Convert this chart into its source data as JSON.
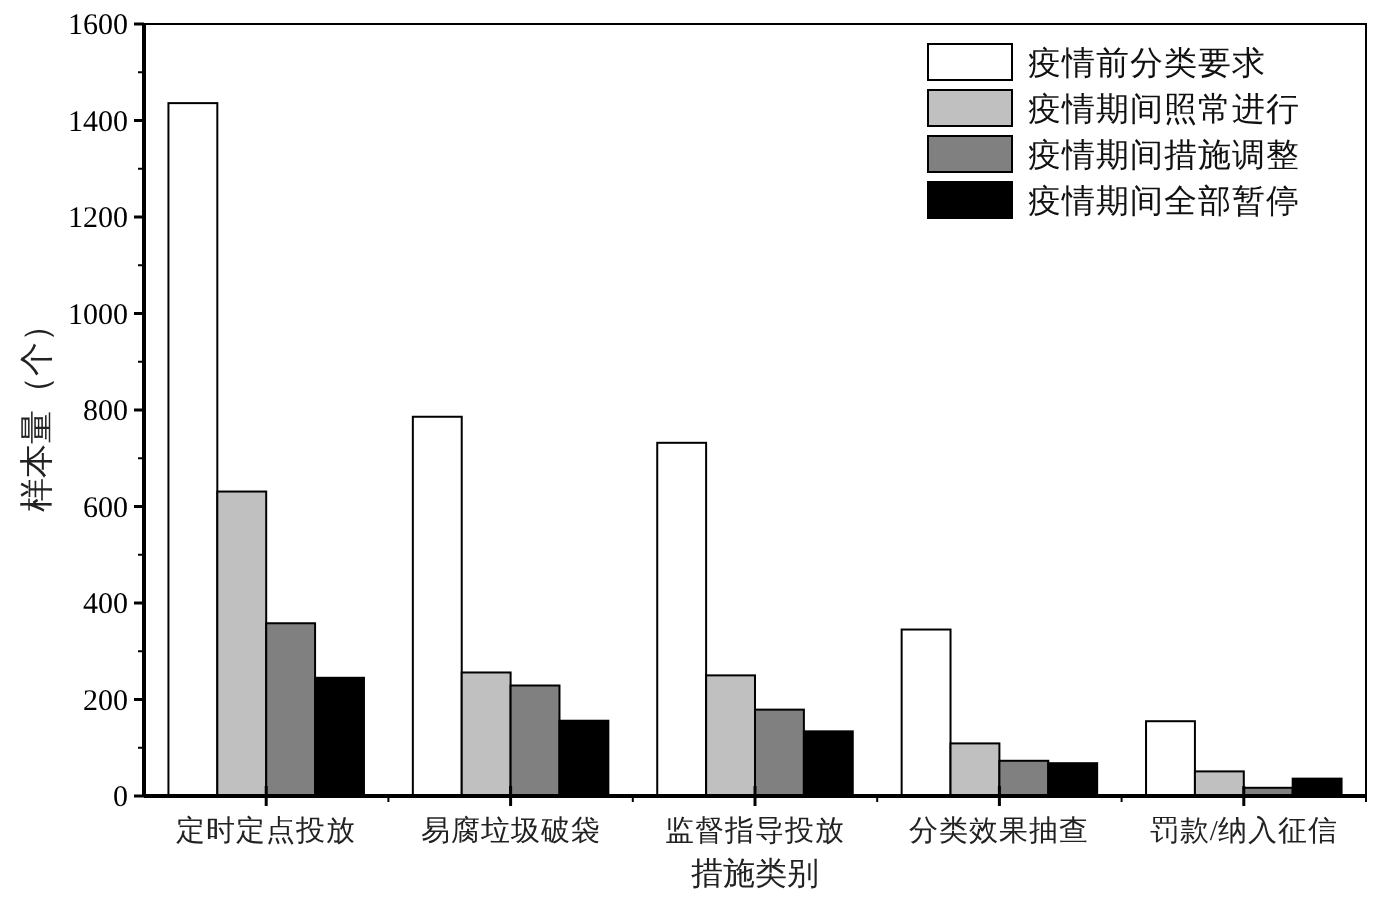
{
  "chart_data": {
    "type": "bar",
    "xlabel": "措施类别",
    "ylabel": "样本量（个）",
    "categories": [
      "定时定点投放",
      "易腐垃圾破袋",
      "监督指导投放",
      "分类效果抽查",
      "罚款/纳入征信"
    ],
    "series": [
      {
        "name": "疫情前分类要求",
        "color": "#ffffff",
        "values": [
          1436,
          786,
          732,
          345,
          155
        ]
      },
      {
        "name": "疫情期间照常进行",
        "color": "#c0c0c0",
        "values": [
          631,
          256,
          250,
          109,
          51
        ]
      },
      {
        "name": "疫情期间措施调整",
        "color": "#808080",
        "values": [
          358,
          229,
          179,
          73,
          17
        ]
      },
      {
        "name": "疫情期间全部暂停",
        "color": "#000000",
        "values": [
          245,
          156,
          134,
          68,
          36
        ]
      }
    ],
    "ylim": [
      0,
      1600
    ],
    "yticks": [
      0,
      200,
      400,
      600,
      800,
      1000,
      1200,
      1400,
      1600
    ],
    "grid": false,
    "legend": "top right"
  }
}
